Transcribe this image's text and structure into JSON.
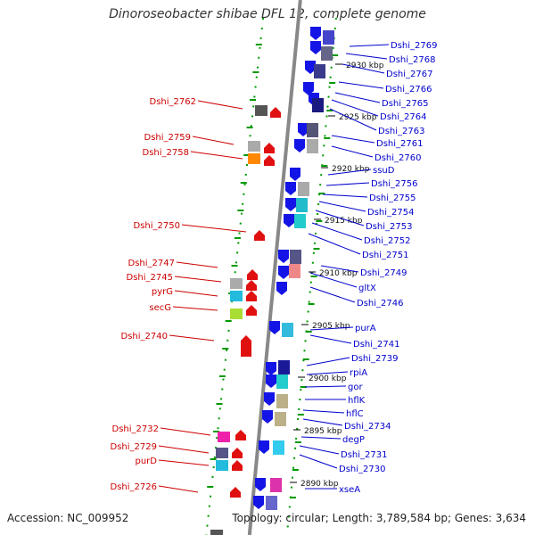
{
  "map": {
    "title": "Dinoroseobacter shibae DFL 12, complete genome",
    "accession": "Accession: NC_009952",
    "topology": "Topology: circular; Length: 3,789,584 bp; Genes: 3,634",
    "scale_ticks": [
      "2930 kbp",
      "2925 kbp",
      "2920 kbp",
      "2915 kbp",
      "2910 kbp",
      "2905 kbp",
      "2900 kbp",
      "2895 kbp",
      "2890 kbp"
    ],
    "right_labels": [
      "Dshi_2769",
      "Dshi_2768",
      "Dshi_2767",
      "Dshi_2766",
      "Dshi_2765",
      "Dshi_2764",
      "Dshi_2763",
      "Dshi_2761",
      "Dshi_2760",
      "ssuD",
      "Dshi_2756",
      "Dshi_2755",
      "Dshi_2754",
      "Dshi_2753",
      "Dshi_2752",
      "Dshi_2751",
      "Dshi_2749",
      "gltX",
      "Dshi_2746",
      "purA",
      "Dshi_2741",
      "Dshi_2739",
      "rpiA",
      "gor",
      "hflK",
      "hflC",
      "Dshi_2734",
      "degP",
      "Dshi_2731",
      "Dshi_2730",
      "xseA"
    ],
    "left_labels": [
      "Dshi_2762",
      "Dshi_2759",
      "Dshi_2758",
      "Dshi_2750",
      "Dshi_2747",
      "Dshi_2745",
      "pyrG",
      "secG",
      "Dshi_2740",
      "Dshi_2732",
      "Dshi_2729",
      "purD",
      "Dshi_2726"
    ],
    "colors": {
      "forward_labels": "#0000cc",
      "reverse_labels": "#cc0000",
      "backbone": "#888888",
      "dotted_track": "#009900",
      "forward_gene": "#1414e6",
      "reverse_gene": "#e01010"
    }
  }
}
